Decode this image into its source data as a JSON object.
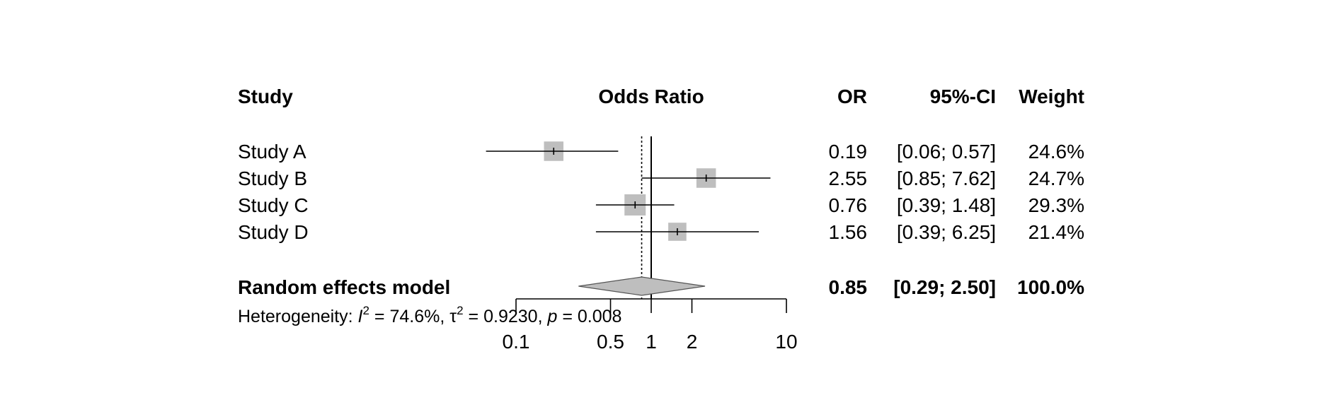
{
  "chart_data": {
    "type": "forest",
    "headers": {
      "study": "Study",
      "plot": "Odds Ratio",
      "or": "OR",
      "ci": "95%-CI",
      "weight": "Weight"
    },
    "studies": [
      {
        "name": "Study A",
        "or": 0.19,
        "ci_low": 0.06,
        "ci_high": 0.57,
        "weight": 24.6,
        "or_text": "0.19",
        "ci_text": "[0.06; 0.57]",
        "weight_text": "24.6%"
      },
      {
        "name": "Study B",
        "or": 2.55,
        "ci_low": 0.85,
        "ci_high": 7.62,
        "weight": 24.7,
        "or_text": "2.55",
        "ci_text": "[0.85; 7.62]",
        "weight_text": "24.7%"
      },
      {
        "name": "Study C",
        "or": 0.76,
        "ci_low": 0.39,
        "ci_high": 1.48,
        "weight": 29.3,
        "or_text": "0.76",
        "ci_text": "[0.39; 1.48]",
        "weight_text": "29.3%"
      },
      {
        "name": "Study D",
        "or": 1.56,
        "ci_low": 0.39,
        "ci_high": 6.25,
        "weight": 21.4,
        "or_text": "1.56",
        "ci_text": "[0.39; 6.25]",
        "weight_text": "21.4%"
      }
    ],
    "pooled": {
      "name": "Random effects model",
      "or": 0.85,
      "ci_low": 0.29,
      "ci_high": 2.5,
      "weight": 100.0,
      "or_text": "0.85",
      "ci_text": "[0.29; 2.50]",
      "weight_text": "100.0%"
    },
    "heterogeneity": {
      "prefix": "Heterogeneity: ",
      "i2_symbol": "I",
      "i2_value": " = 74.6%, ",
      "tau2_symbol": "τ",
      "tau2_value": " = 0.9230, ",
      "p_symbol": "p",
      "p_value": " = 0.008",
      "superscript": "2"
    },
    "x_axis": {
      "scale": "log",
      "ticks": [
        0.1,
        0.5,
        1,
        2,
        10
      ],
      "tick_labels": [
        "0.1",
        "0.5",
        "1",
        "2",
        "10"
      ],
      "range": [
        0.1,
        10
      ]
    },
    "reference_line": 1,
    "pooled_line": 0.85,
    "colors": {
      "square": "#bebebe",
      "diamond": "#bebebe",
      "line": "#000000"
    }
  }
}
